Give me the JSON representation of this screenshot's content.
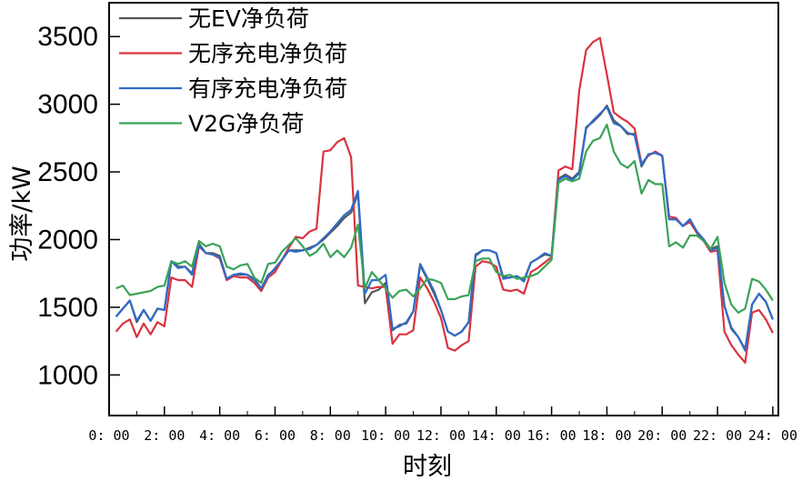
{
  "chart_data": {
    "type": "line",
    "xlabel": "时刻",
    "ylabel": "功率/kW",
    "xlim": [
      0,
      24.2
    ],
    "ylim": [
      700,
      3750
    ],
    "x_ticks": [
      0,
      2,
      4,
      6,
      8,
      10,
      12,
      14,
      16,
      18,
      20,
      22,
      24
    ],
    "x_tick_labels": [
      "0: 00",
      "2: 00",
      "4: 00",
      "6: 00",
      "8: 00",
      "10: 00",
      "12: 00",
      "14: 00",
      "16: 00",
      "18: 00",
      "20: 00",
      "22: 00",
      "24: 00"
    ],
    "y_ticks": [
      1000,
      1500,
      2000,
      2500,
      3000,
      3500
    ],
    "y_tick_labels": [
      "1000",
      "1500",
      "2000",
      "2500",
      "3000",
      "3500"
    ],
    "grid": false,
    "legend_position": "top-left",
    "x": [
      0.25,
      0.5,
      0.75,
      1.0,
      1.25,
      1.5,
      1.75,
      2.0,
      2.25,
      2.5,
      2.75,
      3.0,
      3.25,
      3.5,
      3.75,
      4.0,
      4.25,
      4.5,
      4.75,
      5.0,
      5.25,
      5.5,
      5.75,
      6.0,
      6.25,
      6.5,
      6.75,
      7.0,
      7.25,
      7.5,
      7.75,
      8.0,
      8.25,
      8.5,
      8.75,
      9.0,
      9.25,
      9.5,
      9.75,
      10.0,
      10.25,
      10.5,
      10.75,
      11.0,
      11.25,
      11.5,
      11.75,
      12.0,
      12.25,
      12.5,
      12.75,
      13.0,
      13.25,
      13.5,
      13.75,
      14.0,
      14.25,
      14.5,
      14.75,
      15.0,
      15.25,
      15.5,
      15.75,
      16.0,
      16.25,
      16.5,
      16.75,
      17.0,
      17.25,
      17.5,
      17.75,
      18.0,
      18.25,
      18.5,
      18.75,
      19.0,
      19.25,
      19.5,
      19.75,
      20.0,
      20.25,
      20.5,
      20.75,
      21.0,
      21.25,
      21.5,
      21.75,
      22.0,
      22.25,
      22.5,
      22.75,
      23.0,
      23.25,
      23.5,
      23.75,
      24.0
    ],
    "series": [
      {
        "name": "无EV净负荷",
        "color": "#555555",
        "values": [
          1430,
          1490,
          1550,
          1390,
          1480,
          1400,
          1490,
          1480,
          1840,
          1800,
          1800,
          1750,
          1970,
          1900,
          1900,
          1880,
          1710,
          1740,
          1740,
          1740,
          1710,
          1640,
          1740,
          1780,
          1850,
          1920,
          1920,
          1920,
          1940,
          1960,
          2000,
          2050,
          2100,
          2160,
          2200,
          2340,
          1530,
          1610,
          1630,
          1680,
          1330,
          1370,
          1380,
          1470,
          1810,
          1710,
          1600,
          1480,
          1320,
          1290,
          1320,
          1390,
          1890,
          1920,
          1920,
          1900,
          1720,
          1720,
          1730,
          1700,
          1830,
          1860,
          1890,
          1880,
          2450,
          2480,
          2450,
          2500,
          2830,
          2870,
          2920,
          2990,
          2880,
          2840,
          2780,
          2780,
          2540,
          2630,
          2640,
          2620,
          2150,
          2150,
          2100,
          2150,
          2060,
          2000,
          1930,
          1950,
          1510,
          1340,
          1280,
          1190,
          1520,
          1600,
          1540,
          1410
        ]
      },
      {
        "name": "无序充电净负荷",
        "color": "#d9333f",
        "values": [
          1320,
          1380,
          1410,
          1280,
          1380,
          1300,
          1390,
          1360,
          1720,
          1700,
          1700,
          1650,
          1950,
          1900,
          1890,
          1860,
          1700,
          1730,
          1720,
          1720,
          1680,
          1620,
          1720,
          1760,
          1850,
          1940,
          2020,
          2010,
          2060,
          2080,
          2650,
          2660,
          2720,
          2750,
          2610,
          1660,
          1650,
          1640,
          1650,
          1650,
          1230,
          1300,
          1300,
          1330,
          1720,
          1640,
          1540,
          1420,
          1200,
          1180,
          1220,
          1250,
          1800,
          1840,
          1830,
          1800,
          1630,
          1620,
          1630,
          1600,
          1760,
          1790,
          1830,
          1870,
          2510,
          2540,
          2520,
          3100,
          3400,
          3460,
          3490,
          3220,
          2940,
          2900,
          2870,
          2820,
          2560,
          2620,
          2650,
          2620,
          2170,
          2160,
          2100,
          2130,
          2050,
          1990,
          1910,
          1920,
          1320,
          1220,
          1150,
          1090,
          1460,
          1480,
          1410,
          1310
        ]
      },
      {
        "name": "有序充电净负荷",
        "color": "#2e6cc8",
        "values": [
          1430,
          1490,
          1550,
          1400,
          1480,
          1400,
          1490,
          1480,
          1840,
          1790,
          1800,
          1740,
          1960,
          1900,
          1890,
          1870,
          1710,
          1740,
          1750,
          1740,
          1700,
          1640,
          1730,
          1790,
          1850,
          1920,
          1910,
          1920,
          1930,
          1960,
          2010,
          2060,
          2120,
          2180,
          2220,
          2360,
          1600,
          1700,
          1700,
          1740,
          1340,
          1360,
          1390,
          1470,
          1820,
          1720,
          1620,
          1480,
          1320,
          1290,
          1320,
          1390,
          1880,
          1920,
          1920,
          1900,
          1710,
          1720,
          1730,
          1690,
          1830,
          1860,
          1900,
          1880,
          2440,
          2470,
          2440,
          2490,
          2820,
          2880,
          2930,
          2980,
          2860,
          2840,
          2790,
          2770,
          2550,
          2630,
          2640,
          2620,
          2150,
          2150,
          2100,
          2150,
          2060,
          2000,
          1920,
          1940,
          1510,
          1350,
          1280,
          1180,
          1520,
          1600,
          1540,
          1410
        ]
      },
      {
        "name": "V2G净负荷",
        "color": "#3aa358",
        "values": [
          1640,
          1660,
          1590,
          1600,
          1610,
          1620,
          1650,
          1660,
          1840,
          1820,
          1840,
          1800,
          1990,
          1950,
          1970,
          1950,
          1800,
          1780,
          1810,
          1820,
          1720,
          1680,
          1820,
          1830,
          1910,
          1960,
          2010,
          1950,
          1880,
          1910,
          1970,
          1870,
          1920,
          1870,
          1940,
          2110,
          1640,
          1760,
          1700,
          1640,
          1570,
          1620,
          1630,
          1580,
          1640,
          1710,
          1700,
          1680,
          1560,
          1560,
          1580,
          1590,
          1840,
          1860,
          1860,
          1760,
          1730,
          1740,
          1710,
          1720,
          1730,
          1750,
          1800,
          1850,
          2420,
          2450,
          2430,
          2450,
          2650,
          2730,
          2750,
          2850,
          2650,
          2560,
          2530,
          2580,
          2340,
          2440,
          2410,
          2410,
          1950,
          1980,
          1940,
          2030,
          2030,
          1990,
          1930,
          2020,
          1680,
          1520,
          1460,
          1490,
          1710,
          1690,
          1630,
          1550
        ]
      }
    ]
  }
}
